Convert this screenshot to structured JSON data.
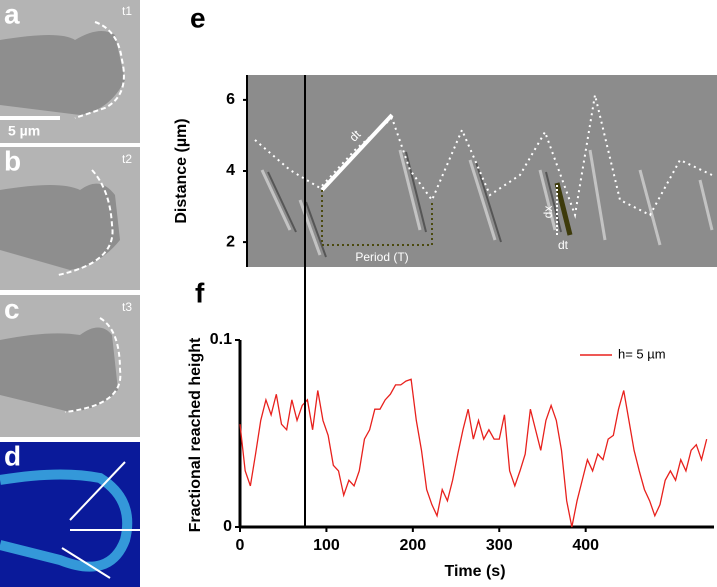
{
  "panels": [
    {
      "label": "a",
      "time": "t1"
    },
    {
      "label": "b",
      "time": "t2"
    },
    {
      "label": "c",
      "time": "t3"
    },
    {
      "label": "d"
    }
  ],
  "scale_bar": "5 µm",
  "kymograph": {
    "label": "e",
    "ylabel": "Distance (µm)",
    "ylim": [
      1.3,
      6.7
    ],
    "yticks": [
      2,
      4,
      6
    ],
    "annotations": [
      "dt",
      "dx",
      "dt",
      "Period (T)"
    ]
  },
  "chart_data": {
    "type": "line",
    "label": "f",
    "ylabel": "Fractional reached height",
    "xlabel": "Time (s)",
    "xlim": [
      0,
      545
    ],
    "ylim": [
      0,
      0.1
    ],
    "xticks": [
      0,
      100,
      200,
      300,
      400
    ],
    "yticks": [
      0,
      0.1
    ],
    "x": [
      0,
      6,
      12,
      18,
      24,
      30,
      36,
      42,
      48,
      54,
      60,
      66,
      72,
      78,
      84,
      90,
      96,
      102,
      108,
      114,
      120,
      126,
      132,
      138,
      144,
      150,
      156,
      162,
      168,
      174,
      180,
      186,
      192,
      198,
      204,
      210,
      216,
      222,
      228,
      234,
      240,
      246,
      252,
      258,
      264,
      270,
      276,
      282,
      288,
      294,
      300,
      306,
      312,
      318,
      324,
      330,
      336,
      342,
      348,
      354,
      360,
      366,
      372,
      378,
      384,
      390,
      396,
      402,
      408,
      414,
      420,
      426,
      432,
      438,
      444,
      450,
      456,
      462,
      468,
      474,
      480,
      486,
      492,
      498,
      504,
      510,
      516,
      522,
      528,
      534,
      540
    ],
    "series": [
      {
        "name": "h= 5 µm",
        "color": "#e8211d",
        "values": [
          0.055,
          0.03,
          0.022,
          0.039,
          0.057,
          0.068,
          0.06,
          0.071,
          0.055,
          0.052,
          0.068,
          0.057,
          0.065,
          0.068,
          0.052,
          0.073,
          0.057,
          0.049,
          0.033,
          0.03,
          0.017,
          0.025,
          0.022,
          0.03,
          0.047,
          0.052,
          0.063,
          0.063,
          0.068,
          0.071,
          0.076,
          0.076,
          0.078,
          0.079,
          0.057,
          0.041,
          0.02,
          0.012,
          0.006,
          0.02,
          0.014,
          0.025,
          0.039,
          0.052,
          0.063,
          0.047,
          0.057,
          0.047,
          0.052,
          0.047,
          0.047,
          0.06,
          0.03,
          0.022,
          0.03,
          0.039,
          0.063,
          0.052,
          0.041,
          0.057,
          0.065,
          0.057,
          0.041,
          0.014,
          0,
          0.014,
          0.025,
          0.036,
          0.03,
          0.039,
          0.036,
          0.047,
          0.049,
          0.063,
          0.073,
          0.057,
          0.041,
          0.03,
          0.02,
          0.014,
          0.006,
          0.012,
          0.025,
          0.03,
          0.025,
          0.036,
          0.03,
          0.041,
          0.044,
          0.036,
          0.047
        ]
      }
    ]
  }
}
